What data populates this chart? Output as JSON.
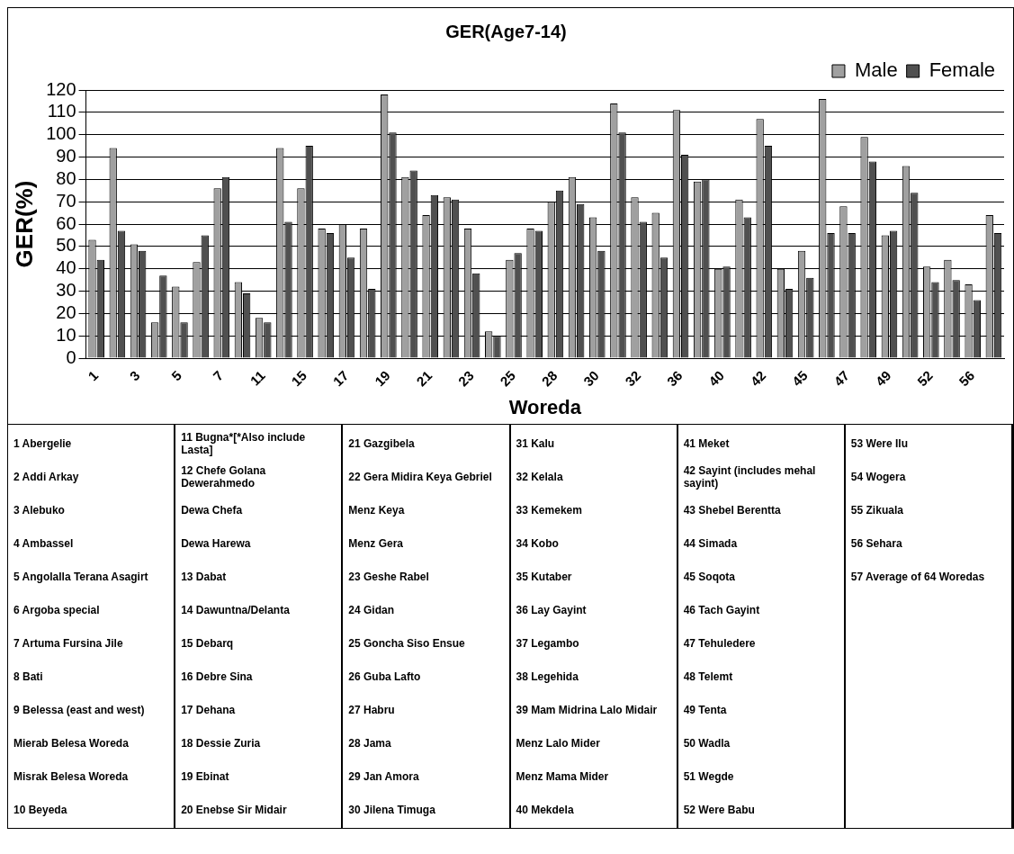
{
  "chart_data": {
    "type": "bar",
    "title": "GER(Age7-14)",
    "xlabel": "Woreda",
    "ylabel": "GER(%)",
    "categories": [
      "1",
      null,
      "3",
      null,
      "5",
      null,
      "7",
      null,
      "11",
      null,
      "15",
      null,
      "17",
      null,
      "19",
      null,
      "21",
      null,
      "23",
      null,
      "25",
      null,
      "28",
      null,
      "30",
      null,
      "32",
      null,
      "36",
      null,
      "40",
      null,
      "42",
      null,
      "45",
      null,
      "47",
      null,
      "49",
      null,
      "52",
      null,
      "56",
      null
    ],
    "series": [
      {
        "name": "Male",
        "color": "#a0a0a0",
        "values": [
          53,
          94,
          51,
          16,
          32,
          43,
          76,
          34,
          18,
          94,
          76,
          58,
          60,
          58,
          118,
          81,
          64,
          72,
          58,
          12,
          44,
          58,
          70,
          81,
          63,
          114,
          72,
          65,
          111,
          79,
          40,
          71,
          107,
          40,
          48,
          116,
          68,
          99,
          55,
          86,
          41,
          44,
          33,
          64
        ]
      },
      {
        "name": "Female",
        "color": "#505050",
        "values": [
          44,
          57,
          48,
          37,
          16,
          55,
          81,
          29,
          16,
          61,
          95,
          56,
          45,
          31,
          101,
          84,
          73,
          71,
          38,
          10,
          47,
          57,
          75,
          69,
          48,
          101,
          61,
          45,
          91,
          80,
          41,
          63,
          95,
          31,
          36,
          56,
          56,
          88,
          57,
          74,
          34,
          35,
          26,
          56
        ]
      }
    ],
    "ylim": [
      0,
      120
    ],
    "yticks": [
      0,
      10,
      20,
      30,
      40,
      50,
      60,
      70,
      80,
      90,
      100,
      110,
      120
    ],
    "grid": "y",
    "legend": "top right",
    "annotations": [
      "1 Abergelie",
      "2 Addi Arkay",
      "3 Alebuko",
      "4 Ambassel",
      "5 Angolalla Terana Asagirt",
      "6 Argoba special",
      "7 Artuma Fursina Jile",
      "8 Bati",
      "9 Belessa (east and west)",
      "Mierab Belesa Woreda",
      "Misrak Belesa Woreda",
      "10 Beyeda",
      "11 Bugna*[*Also include Lasta]",
      "12 Chefe Golana Dewerahmedo",
      "Dewa Chefa",
      "Dewa Harewa",
      "13 Dabat",
      "14 Dawuntna/Delanta",
      "15 Debarq",
      "16 Debre Sina",
      "17 Dehana",
      "18 Dessie Zuria",
      "19 Ebinat",
      "20 Enebse Sir Midair",
      "21 Gazgibela",
      "22 Gera Midira Keya Gebriel",
      "Menz Keya",
      "Menz Gera",
      "23 Geshe Rabel",
      "24 Gidan",
      "25 Goncha Siso Ensue",
      "26 Guba Lafto",
      "27 Habru",
      "28 Jama",
      "29 Jan Amora",
      "30 Jilena Timuga",
      "31 Kalu",
      "32 Kelala",
      "33 Kemekem",
      "34 Kobo",
      "35 Kutaber",
      "36 Lay Gayint",
      "37 Legambo",
      "38 Legehida",
      "39 Mam Midrina Lalo Midair",
      "Menz Lalo Mider",
      "Menz Mama Mider",
      "40 Mekdela",
      "41 Meket",
      "42 Sayint (includes mehal sayint)",
      "43 Shebel Berentta",
      "44 Simada",
      "45 Soqota",
      "46 Tach Gayint",
      "47 Tehuledere",
      "48 Telemt",
      "49 Tenta",
      "50 Wadla",
      "51 Wegde",
      "52 Were Babu",
      "53 Were Ilu",
      "54 Wogera",
      "55 Zikuala",
      "56 Sehara",
      "57 Average of 64 Woredas"
    ]
  }
}
